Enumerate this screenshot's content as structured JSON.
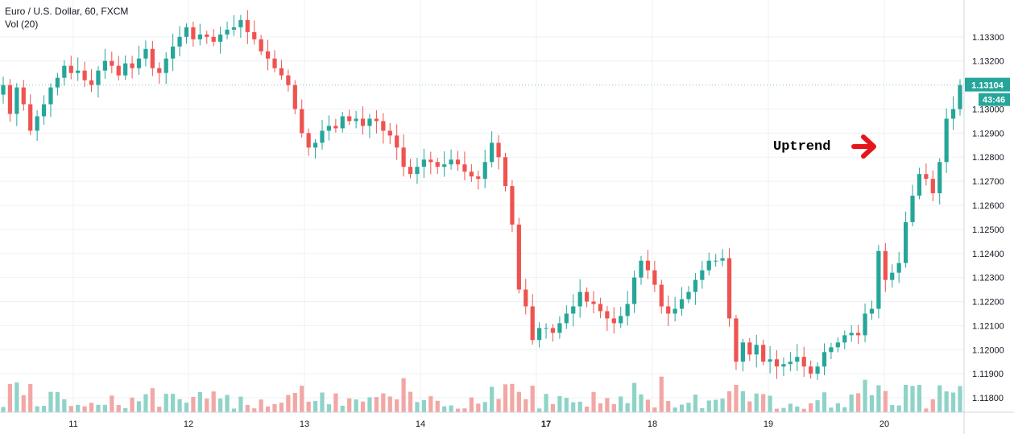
{
  "chart_data": {
    "type": "candlestick",
    "title": "Euro / U.S. Dollar, 60, FXCM",
    "volume_label": "Vol (20)",
    "x_tick_labels": [
      "11",
      "12",
      "13",
      "14",
      "17",
      "18",
      "19",
      "20"
    ],
    "y_tick_labels": [
      "1.11800",
      "1.11900",
      "1.12000",
      "1.12100",
      "1.12200",
      "1.12300",
      "1.12400",
      "1.12500",
      "1.12600",
      "1.12700",
      "1.12800",
      "1.12900",
      "1.13000",
      "1.13200",
      "1.13300"
    ],
    "ylim": [
      1.1174,
      1.1344
    ],
    "last_price_label": "1.13104",
    "countdown_label": "43:46",
    "colors": {
      "up": "#26a69a",
      "down": "#ef5350",
      "up_volume": "#8fd3c8",
      "down_volume": "#f2a7a5",
      "last_price_box": "#26a69a",
      "grid": "#eef0f3",
      "axis_text": "#131722",
      "annotation_arrow": "#e5161b"
    },
    "price_path_close": [
      1.131,
      1.1298,
      1.1309,
      1.1302,
      1.1291,
      1.1297,
      1.1302,
      1.1309,
      1.1313,
      1.1318,
      1.1315,
      1.1316,
      1.1312,
      1.131,
      1.1316,
      1.132,
      1.1318,
      1.1314,
      1.1319,
      1.1317,
      1.1321,
      1.1325,
      1.1317,
      1.1315,
      1.1321,
      1.1326,
      1.133,
      1.1334,
      1.1329,
      1.1331,
      1.133,
      1.1328,
      1.1331,
      1.1333,
      1.1334,
      1.1337,
      1.1332,
      1.1329,
      1.1324,
      1.1321,
      1.1317,
      1.1314,
      1.131,
      1.13,
      1.129,
      1.1284,
      1.1286,
      1.1291,
      1.1293,
      1.1292,
      1.1297,
      1.1295,
      1.1296,
      1.1293,
      1.1296,
      1.1295,
      1.1291,
      1.1289,
      1.1284,
      1.1276,
      1.1273,
      1.1276,
      1.1279,
      1.1278,
      1.1276,
      1.1277,
      1.1279,
      1.1277,
      1.1274,
      1.1272,
      1.1271,
      1.1278,
      1.1286,
      1.128,
      1.1268,
      1.1252,
      1.1225,
      1.1218,
      1.1204,
      1.1209,
      1.1209,
      1.1207,
      1.1211,
      1.1215,
      1.1218,
      1.1224,
      1.122,
      1.1219,
      1.1216,
      1.1213,
      1.1211,
      1.1214,
      1.1219,
      1.123,
      1.1237,
      1.1233,
      1.1227,
      1.1218,
      1.1215,
      1.1217,
      1.1221,
      1.1224,
      1.1229,
      1.1233,
      1.1237,
      1.1237,
      1.1238,
      1.1213,
      1.1195,
      1.1203,
      1.1198,
      1.1202,
      1.1195,
      1.1196,
      1.1193,
      1.1194,
      1.1195,
      1.1197,
      1.1193,
      1.119,
      1.1193,
      1.1199,
      1.1201,
      1.1203,
      1.1206,
      1.1207,
      1.1206,
      1.1215,
      1.1217,
      1.1241,
      1.1229,
      1.1232,
      1.1236,
      1.1253,
      1.1264,
      1.1273,
      1.1271,
      1.1265,
      1.1278,
      1.1296,
      1.13,
      1.131
    ],
    "annotation": "Uptrend"
  }
}
